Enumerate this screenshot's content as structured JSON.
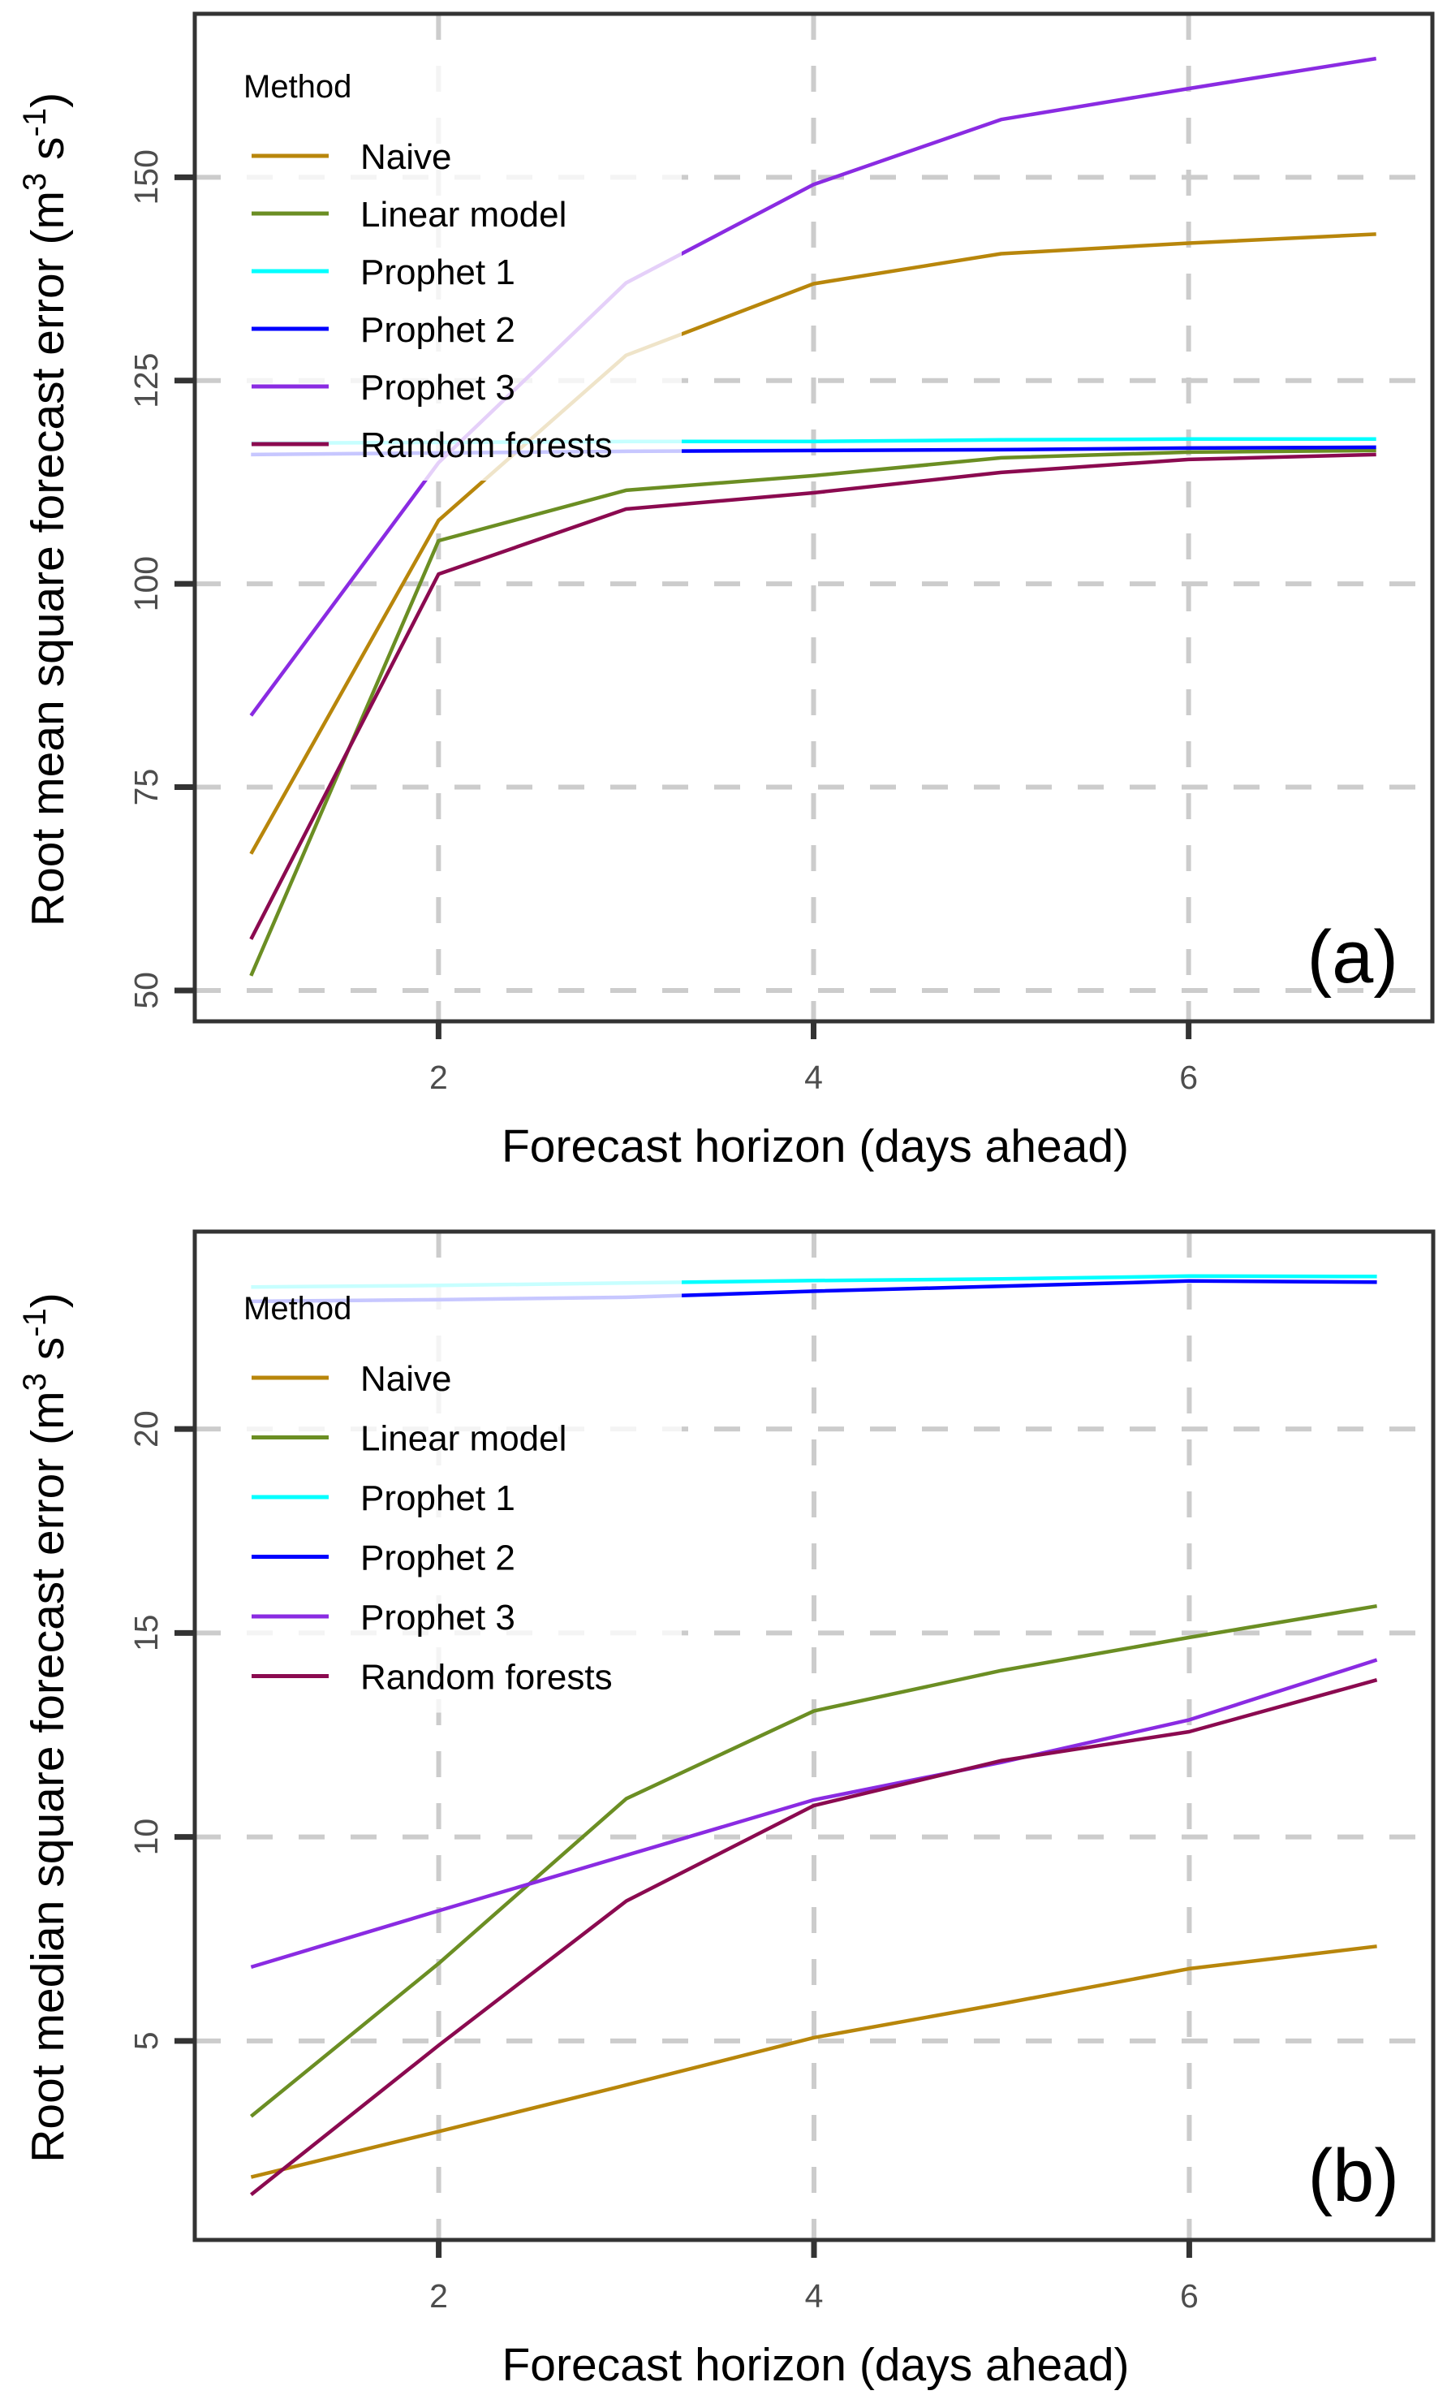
{
  "chart_data": [
    {
      "type": "line",
      "panel_label": "(a)",
      "title": "",
      "xlabel": "Forecast horizon (days ahead)",
      "ylabel": {
        "text": "Root mean square forecast error (m",
        "sup1": "3",
        "mid": " s",
        "sup2": "-1",
        "end": ")"
      },
      "x": [
        1,
        2,
        3,
        4,
        5,
        6,
        7
      ],
      "xlim": [
        0.7,
        7.3
      ],
      "ylim": [
        46.2,
        170.1
      ],
      "xticks": [
        2,
        4,
        6
      ],
      "xtick_labels": [
        "2",
        "4",
        "6"
      ],
      "yticks": [
        50,
        75,
        100,
        125,
        150
      ],
      "ytick_labels": [
        "50",
        "75",
        "100",
        "125",
        "150"
      ],
      "grid": true,
      "legend": {
        "title": "Method",
        "placement": "top-left"
      },
      "series": [
        {
          "name": "Naive",
          "color": "#b8860b",
          "values": [
            66.8,
            107.8,
            128.1,
            136.9,
            140.6,
            141.9,
            143.0
          ]
        },
        {
          "name": "Linear model",
          "color": "#6b8e23",
          "values": [
            51.8,
            105.3,
            111.5,
            113.3,
            115.5,
            116.2,
            116.4
          ]
        },
        {
          "name": "Prophet 1",
          "color": "#00ffff",
          "values": [
            117.3,
            117.4,
            117.5,
            117.5,
            117.7,
            117.8,
            117.8
          ]
        },
        {
          "name": "Prophet 2",
          "color": "#0000ff",
          "values": [
            115.9,
            116.1,
            116.3,
            116.4,
            116.5,
            116.7,
            116.8
          ]
        },
        {
          "name": "Prophet 3",
          "color": "#8a2be2",
          "values": [
            83.8,
            114.9,
            137.0,
            149.1,
            157.1,
            160.9,
            164.6
          ]
        },
        {
          "name": "Random forests",
          "color": "#8b0a50",
          "values": [
            56.3,
            101.2,
            109.2,
            111.2,
            113.7,
            115.3,
            115.9
          ]
        }
      ]
    },
    {
      "type": "line",
      "panel_label": "(b)",
      "title": "",
      "xlabel": "Forecast horizon (days ahead)",
      "ylabel": {
        "text": "Root median square forecast error (m",
        "sup1": "3",
        "mid": " s",
        "sup2": "-1",
        "end": ")"
      },
      "x": [
        1,
        2,
        3,
        4,
        5,
        6,
        7
      ],
      "xlim": [
        0.7,
        7.3
      ],
      "ylim": [
        0.12,
        24.84
      ],
      "xticks": [
        2,
        4,
        6
      ],
      "xtick_labels": [
        "2",
        "4",
        "6"
      ],
      "yticks": [
        5,
        10,
        15,
        20
      ],
      "ytick_labels": [
        "5",
        "10",
        "15",
        "20"
      ],
      "grid": true,
      "legend": {
        "title": "Method",
        "placement": "top-left"
      },
      "series": [
        {
          "name": "Naive",
          "color": "#b8860b",
          "values": [
            1.66,
            2.78,
            3.92,
            5.08,
            5.91,
            6.77,
            7.32
          ]
        },
        {
          "name": "Linear model",
          "color": "#6b8e23",
          "values": [
            3.15,
            6.9,
            10.94,
            13.09,
            14.08,
            14.89,
            15.66
          ]
        },
        {
          "name": "Prophet 1",
          "color": "#00ffff",
          "values": [
            23.48,
            23.52,
            23.58,
            23.64,
            23.68,
            23.75,
            23.74
          ]
        },
        {
          "name": "Prophet 2",
          "color": "#0000ff",
          "values": [
            23.13,
            23.17,
            23.23,
            23.38,
            23.5,
            23.63,
            23.6
          ]
        },
        {
          "name": "Prophet 3",
          "color": "#8a2be2",
          "values": [
            6.81,
            8.19,
            9.55,
            10.91,
            11.83,
            12.87,
            14.34
          ]
        },
        {
          "name": "Random forests",
          "color": "#8b0a50",
          "values": [
            1.23,
            4.89,
            8.43,
            10.77,
            11.87,
            12.58,
            13.85
          ]
        }
      ]
    }
  ]
}
